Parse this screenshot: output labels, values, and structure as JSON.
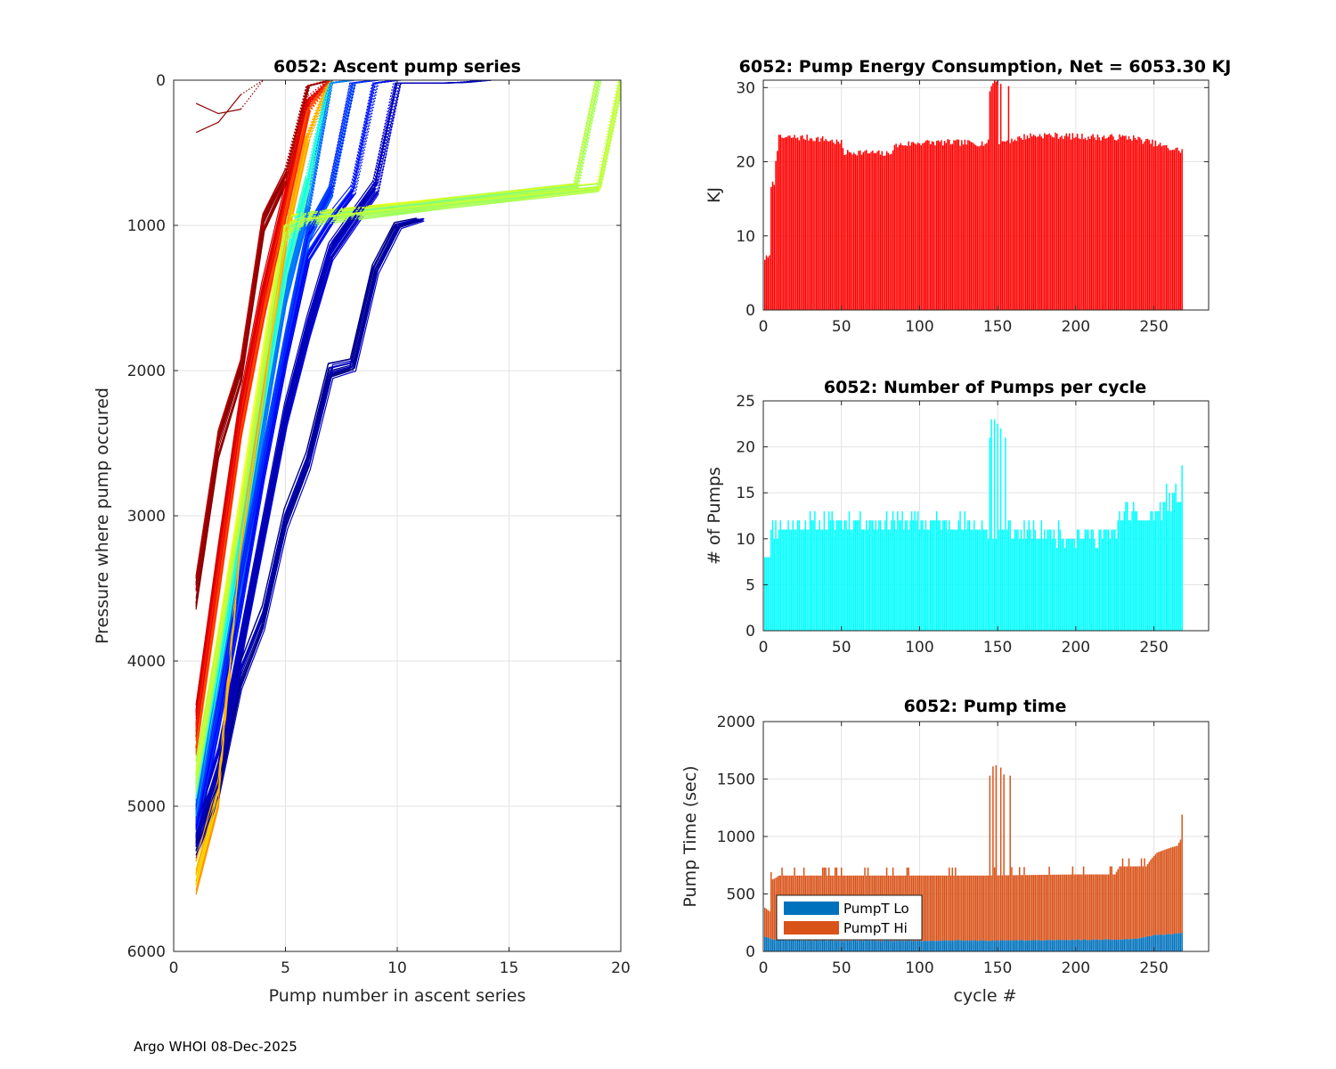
{
  "footer": {
    "text": "Argo WHOI 08-Dec-2025"
  },
  "chart_data": [
    {
      "id": "ascent",
      "type": "line",
      "title": "6052: Ascent pump series",
      "xlabel": "Pump number in ascent series",
      "ylabel": "Pressure where pump occured",
      "xlim": [
        0,
        20
      ],
      "ylim": [
        0,
        6000
      ],
      "y_reversed": true,
      "xticks": [
        0,
        5,
        10,
        15,
        20
      ],
      "yticks": [
        0,
        1000,
        2000,
        3000,
        4000,
        5000,
        6000
      ],
      "grid": true,
      "colormap": "jet",
      "series_count": 268,
      "representative_series": [
        {
          "color_index": 0.02,
          "x": [
            1,
            2,
            3,
            4,
            5,
            6,
            7,
            8,
            9,
            10,
            11
          ],
          "y": [
            5240,
            4840,
            4100,
            3700,
            3020,
            2620,
            2000,
            1960,
            1300,
            1000,
            960
          ]
        },
        {
          "color_index": 0.06,
          "x": [
            1,
            2,
            3,
            4,
            5,
            6,
            7,
            8,
            9,
            10,
            11,
            12,
            13,
            14
          ],
          "y": [
            5200,
            4700,
            3900,
            3100,
            2300,
            1700,
            1180,
            960,
            740,
            20,
            20,
            20,
            15,
            0
          ]
        },
        {
          "color_index": 0.12,
          "x": [
            1,
            2,
            3,
            4,
            5,
            6,
            7,
            8,
            9,
            10
          ],
          "y": [
            5150,
            4400,
            3600,
            2700,
            1900,
            1200,
            960,
            760,
            20,
            0
          ]
        },
        {
          "color_index": 0.18,
          "x": [
            1,
            2,
            3,
            4,
            5,
            6,
            7,
            8,
            9
          ],
          "y": [
            5100,
            4300,
            3400,
            2600,
            1800,
            1050,
            760,
            20,
            0
          ]
        },
        {
          "color_index": 0.25,
          "x": [
            1,
            2,
            3,
            4,
            5,
            6,
            7,
            8
          ],
          "y": [
            5050,
            4200,
            3300,
            2400,
            1500,
            900,
            20,
            0
          ]
        },
        {
          "color_index": 0.4,
          "x": [
            1,
            2,
            3,
            4,
            5,
            6,
            7
          ],
          "y": [
            4950,
            4050,
            3150,
            2200,
            1300,
            700,
            0
          ]
        },
        {
          "color_index": 0.55,
          "x": [
            1,
            2,
            3,
            4,
            5,
            6,
            18,
            19
          ],
          "y": [
            4850,
            3950,
            3000,
            2000,
            1050,
            960,
            740,
            0
          ]
        },
        {
          "color_index": 0.58,
          "x": [
            1,
            2,
            3,
            4,
            5,
            6,
            19,
            20
          ],
          "y": [
            4800,
            3900,
            2950,
            1950,
            1000,
            950,
            740,
            0
          ]
        },
        {
          "color_index": 0.68,
          "x": [
            1,
            2,
            3,
            4,
            5,
            6,
            7
          ],
          "y": [
            5480,
            4900,
            3200,
            2200,
            1100,
            400,
            0
          ]
        },
        {
          "color_index": 0.82,
          "x": [
            1,
            2,
            3,
            4,
            5,
            6,
            7
          ],
          "y": [
            4550,
            3500,
            2400,
            1600,
            900,
            200,
            0
          ]
        },
        {
          "color_index": 0.9,
          "x": [
            1,
            2,
            3,
            4,
            5,
            6,
            7
          ],
          "y": [
            4400,
            3300,
            2250,
            1450,
            800,
            150,
            0
          ]
        },
        {
          "color_index": 0.97,
          "x": [
            1,
            2,
            3,
            4,
            5,
            6,
            7
          ],
          "y": [
            3520,
            2500,
            2000,
            980,
            660,
            40,
            0
          ]
        },
        {
          "color_index": 0.99,
          "x": [
            1,
            2,
            3,
            4
          ],
          "y": [
            360,
            290,
            100,
            0
          ]
        },
        {
          "color_index": 0.99,
          "x": [
            1,
            2,
            3,
            4
          ],
          "y": [
            160,
            230,
            200,
            0
          ]
        }
      ]
    },
    {
      "id": "energy",
      "type": "bar",
      "title": "6052: Pump Energy Consumption,  Net = 6053.30 KJ",
      "xlabel": "",
      "ylabel": "KJ",
      "xlim": [
        0,
        285
      ],
      "ylim": [
        0,
        31
      ],
      "xticks": [
        0,
        50,
        100,
        150,
        200,
        250
      ],
      "yticks": [
        0,
        10,
        20,
        30
      ],
      "grid": true,
      "color": "#ff0000",
      "cycles": 268,
      "profile": [
        [
          1,
          7
        ],
        [
          4,
          7
        ],
        [
          5,
          17
        ],
        [
          7,
          17
        ],
        [
          8,
          20.5
        ],
        [
          10,
          23.2
        ],
        [
          20,
          23.3
        ],
        [
          30,
          23.2
        ],
        [
          40,
          23.0
        ],
        [
          50,
          22.5
        ],
        [
          52,
          21.2
        ],
        [
          60,
          21.3
        ],
        [
          70,
          21.2
        ],
        [
          80,
          21.0
        ],
        [
          85,
          22.2
        ],
        [
          100,
          22.6
        ],
        [
          120,
          22.6
        ],
        [
          140,
          22.5
        ],
        [
          150,
          22.6
        ],
        [
          160,
          23.0
        ],
        [
          170,
          23.5
        ],
        [
          180,
          23.6
        ],
        [
          200,
          23.4
        ],
        [
          220,
          23.3
        ],
        [
          235,
          23.3
        ],
        [
          250,
          22.5
        ],
        [
          260,
          21.8
        ],
        [
          268,
          21.5
        ]
      ],
      "spikes": [
        [
          145,
          29.5
        ],
        [
          146,
          30.2
        ],
        [
          147,
          30.6
        ],
        [
          148,
          31
        ],
        [
          149,
          30.8
        ],
        [
          150,
          31
        ],
        [
          152,
          30.5
        ],
        [
          157,
          30.2
        ]
      ]
    },
    {
      "id": "pumps",
      "type": "bar",
      "title": "6052: Number of Pumps per cycle",
      "xlabel": "",
      "ylabel": "# of Pumps",
      "xlim": [
        0,
        285
      ],
      "ylim": [
        0,
        25
      ],
      "xticks": [
        0,
        50,
        100,
        150,
        200,
        250
      ],
      "yticks": [
        0,
        5,
        10,
        15,
        20,
        25
      ],
      "grid": true,
      "color": "#00ffff",
      "cycles": 268,
      "profile": [
        [
          1,
          9
        ],
        [
          4,
          8
        ],
        [
          5,
          11
        ],
        [
          20,
          11.5
        ],
        [
          60,
          12
        ],
        [
          100,
          11.8
        ],
        [
          140,
          11.5
        ],
        [
          144,
          10
        ],
        [
          155,
          11
        ],
        [
          200,
          10.3
        ],
        [
          225,
          10.5
        ],
        [
          230,
          13
        ],
        [
          245,
          12
        ],
        [
          255,
          13.5
        ],
        [
          268,
          15
        ]
      ],
      "spikes": [
        [
          145,
          21
        ],
        [
          146,
          23
        ],
        [
          148,
          23
        ],
        [
          150,
          22.5
        ],
        [
          152,
          22
        ],
        [
          155,
          21
        ],
        [
          258,
          16
        ],
        [
          265,
          14
        ],
        [
          268,
          18
        ]
      ]
    },
    {
      "id": "pumptime",
      "type": "bar",
      "stacked": true,
      "title": "6052: Pump time",
      "xlabel": "cycle #",
      "ylabel": "Pump Time (sec)",
      "xlim": [
        0,
        285
      ],
      "ylim": [
        0,
        2000
      ],
      "xticks": [
        0,
        50,
        100,
        150,
        200,
        250
      ],
      "yticks": [
        0,
        500,
        1000,
        1500,
        2000
      ],
      "grid": true,
      "cycles": 268,
      "legend": {
        "position": "lower-left",
        "entries": [
          {
            "label": "PumpT Lo",
            "color": "#0072bd"
          },
          {
            "label": "PumpT Hi",
            "color": "#d95319"
          }
        ]
      },
      "lo_profile": [
        [
          1,
          130
        ],
        [
          5,
          110
        ],
        [
          10,
          100
        ],
        [
          50,
          95
        ],
        [
          100,
          93
        ],
        [
          150,
          95
        ],
        [
          200,
          100
        ],
        [
          230,
          105
        ],
        [
          240,
          110
        ],
        [
          250,
          140
        ],
        [
          268,
          160
        ]
      ],
      "total_profile": [
        [
          1,
          380
        ],
        [
          4,
          350
        ],
        [
          5,
          620
        ],
        [
          8,
          640
        ],
        [
          10,
          660
        ],
        [
          100,
          660
        ],
        [
          140,
          660
        ],
        [
          200,
          670
        ],
        [
          225,
          670
        ],
        [
          228,
          740
        ],
        [
          245,
          740
        ],
        [
          248,
          800
        ],
        [
          252,
          860
        ],
        [
          260,
          900
        ],
        [
          265,
          920
        ],
        [
          268,
          1000
        ]
      ],
      "spikes": [
        [
          145,
          1530
        ],
        [
          147,
          1610
        ],
        [
          149,
          1620
        ],
        [
          152,
          1600
        ],
        [
          154,
          1540
        ],
        [
          158,
          1530
        ],
        [
          268,
          1190
        ]
      ]
    }
  ]
}
